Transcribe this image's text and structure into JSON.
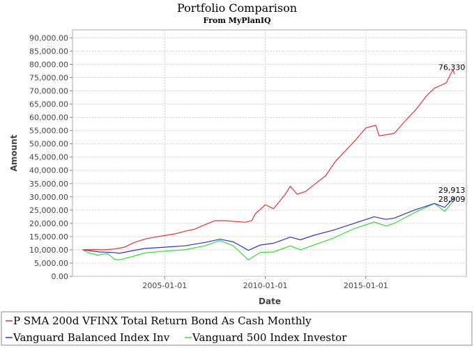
{
  "chart_data": {
    "type": "line",
    "title": "Portfolio Comparison",
    "subtitle": "From MyPlanIQ",
    "xlabel": "Date",
    "ylabel": "Amount",
    "xlim": [
      "2000-06-01",
      "2019-12-31"
    ],
    "ylim": [
      0,
      93000
    ],
    "yticks": [
      0,
      5000,
      10000,
      15000,
      20000,
      25000,
      30000,
      35000,
      40000,
      45000,
      50000,
      55000,
      60000,
      65000,
      70000,
      75000,
      80000,
      85000,
      90000
    ],
    "ytick_labels": [
      "0.00",
      "5,000.00",
      "10,000.00",
      "15,000.00",
      "20,000.00",
      "25,000.00",
      "30,000.00",
      "35,000.00",
      "40,000.00",
      "45,000.00",
      "50,000.00",
      "55,000.00",
      "60,000.00",
      "65,000.00",
      "70,000.00",
      "75,000.00",
      "80,000.00",
      "85,000.00",
      "90,000.00"
    ],
    "xticks": [
      "2005-01-01",
      "2010-01-01",
      "2015-01-01"
    ],
    "grid": true,
    "legend_position": "bottom",
    "series": [
      {
        "name": "P SMA 200d VFINX Total Return Bond As Cash Monthly",
        "color": "#e8312f",
        "end_label": "76,330",
        "points": [
          [
            "2000-12-01",
            10000
          ],
          [
            "2001-06-01",
            10100
          ],
          [
            "2002-01-01",
            10000
          ],
          [
            "2002-07-01",
            10300
          ],
          [
            "2003-01-01",
            11000
          ],
          [
            "2003-07-01",
            12800
          ],
          [
            "2004-01-01",
            14000
          ],
          [
            "2004-07-01",
            14800
          ],
          [
            "2005-01-01",
            15400
          ],
          [
            "2005-07-01",
            16000
          ],
          [
            "2006-01-01",
            17000
          ],
          [
            "2006-07-01",
            17800
          ],
          [
            "2007-01-01",
            19500
          ],
          [
            "2007-07-01",
            21000
          ],
          [
            "2008-01-01",
            21000
          ],
          [
            "2008-07-01",
            20700
          ],
          [
            "2009-01-01",
            20400
          ],
          [
            "2009-05-01",
            21000
          ],
          [
            "2009-07-01",
            23500
          ],
          [
            "2010-01-01",
            27000
          ],
          [
            "2010-06-01",
            25500
          ],
          [
            "2011-01-01",
            31000
          ],
          [
            "2011-04-01",
            34000
          ],
          [
            "2011-08-01",
            31000
          ],
          [
            "2012-01-01",
            32000
          ],
          [
            "2012-07-01",
            35000
          ],
          [
            "2013-01-01",
            38000
          ],
          [
            "2013-07-01",
            43500
          ],
          [
            "2014-01-01",
            47500
          ],
          [
            "2014-07-01",
            51500
          ],
          [
            "2015-01-01",
            56000
          ],
          [
            "2015-07-01",
            57000
          ],
          [
            "2015-09-01",
            53000
          ],
          [
            "2016-06-01",
            54000
          ],
          [
            "2017-01-01",
            59000
          ],
          [
            "2017-07-01",
            63000
          ],
          [
            "2018-01-01",
            68000
          ],
          [
            "2018-06-01",
            71000
          ],
          [
            "2019-01-01",
            73000
          ],
          [
            "2019-05-01",
            78000
          ],
          [
            "2019-06-01",
            76330
          ]
        ]
      },
      {
        "name": "Vanguard Balanced Index Inv",
        "color": "#3030d8",
        "end_label": "29,913",
        "points": [
          [
            "2000-12-01",
            10000
          ],
          [
            "2001-06-01",
            9500
          ],
          [
            "2001-10-01",
            9200
          ],
          [
            "2002-06-01",
            9000
          ],
          [
            "2002-10-01",
            8700
          ],
          [
            "2003-06-01",
            9700
          ],
          [
            "2004-01-01",
            10500
          ],
          [
            "2005-01-01",
            11000
          ],
          [
            "2006-01-01",
            11500
          ],
          [
            "2007-01-01",
            12800
          ],
          [
            "2007-10-01",
            14000
          ],
          [
            "2008-06-01",
            13000
          ],
          [
            "2009-03-01",
            9800
          ],
          [
            "2009-10-01",
            11800
          ],
          [
            "2010-06-01",
            12500
          ],
          [
            "2011-04-01",
            14800
          ],
          [
            "2011-10-01",
            13800
          ],
          [
            "2012-06-01",
            15500
          ],
          [
            "2013-06-01",
            17500
          ],
          [
            "2014-06-01",
            20000
          ],
          [
            "2015-06-01",
            22500
          ],
          [
            "2016-01-01",
            21500
          ],
          [
            "2016-06-01",
            22000
          ],
          [
            "2017-06-01",
            25000
          ],
          [
            "2018-06-01",
            27500
          ],
          [
            "2018-12-01",
            26000
          ],
          [
            "2019-06-01",
            29913
          ]
        ]
      },
      {
        "name": "Vanguard 500 Index Investor",
        "color": "#33dd33",
        "end_label": "28,909",
        "points": [
          [
            "2000-12-01",
            10000
          ],
          [
            "2001-04-01",
            8800
          ],
          [
            "2001-09-01",
            8000
          ],
          [
            "2002-03-01",
            8600
          ],
          [
            "2002-07-01",
            6500
          ],
          [
            "2002-10-01",
            6200
          ],
          [
            "2003-06-01",
            7500
          ],
          [
            "2004-01-01",
            8800
          ],
          [
            "2005-01-01",
            9500
          ],
          [
            "2006-01-01",
            10000
          ],
          [
            "2007-01-01",
            11500
          ],
          [
            "2007-10-01",
            13500
          ],
          [
            "2008-06-01",
            11500
          ],
          [
            "2009-03-01",
            6200
          ],
          [
            "2009-10-01",
            9000
          ],
          [
            "2010-06-01",
            9200
          ],
          [
            "2011-04-01",
            11500
          ],
          [
            "2011-10-01",
            10000
          ],
          [
            "2012-06-01",
            11800
          ],
          [
            "2013-06-01",
            14500
          ],
          [
            "2014-06-01",
            18000
          ],
          [
            "2015-06-01",
            20500
          ],
          [
            "2016-01-01",
            19000
          ],
          [
            "2016-06-01",
            20000
          ],
          [
            "2017-06-01",
            24000
          ],
          [
            "2018-06-01",
            27500
          ],
          [
            "2018-12-01",
            24500
          ],
          [
            "2019-06-01",
            28909
          ]
        ]
      }
    ]
  }
}
